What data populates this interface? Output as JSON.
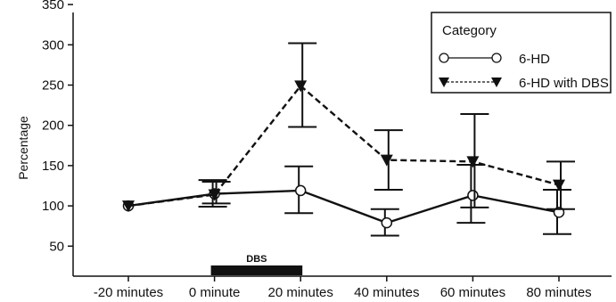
{
  "chart_data": {
    "type": "line",
    "title": "",
    "xlabel": "",
    "ylabel": "Percentage",
    "categories": [
      "-20 minutes",
      "0 minute",
      "20 minutes",
      "40 minutes",
      "60 minutes",
      "80 minutes"
    ],
    "yticks": [
      50,
      100,
      150,
      200,
      250,
      300,
      350
    ],
    "ylim": [
      40,
      360
    ],
    "grid": false,
    "legend": {
      "title": "Category",
      "position": "top-right"
    },
    "series": [
      {
        "name": "6-HD",
        "style": "solid",
        "marker": "open-circle",
        "values": [
          100,
          115,
          119,
          79,
          113,
          92
        ],
        "err_low": [
          null,
          99,
          91,
          63,
          79,
          65
        ],
        "err_high": [
          null,
          132,
          149,
          96,
          151,
          120
        ]
      },
      {
        "name": "6-HD with DBS",
        "style": "dashed",
        "marker": "filled-triangle-down",
        "values": [
          100,
          114,
          249,
          157,
          155,
          126
        ],
        "err_low": [
          null,
          103,
          198,
          120,
          98,
          96
        ],
        "err_high": [
          null,
          130,
          302,
          194,
          214,
          155
        ]
      }
    ],
    "annotations": [
      {
        "text": "DBS",
        "from_category": "0 minute",
        "to_category": "20 minutes"
      }
    ]
  }
}
